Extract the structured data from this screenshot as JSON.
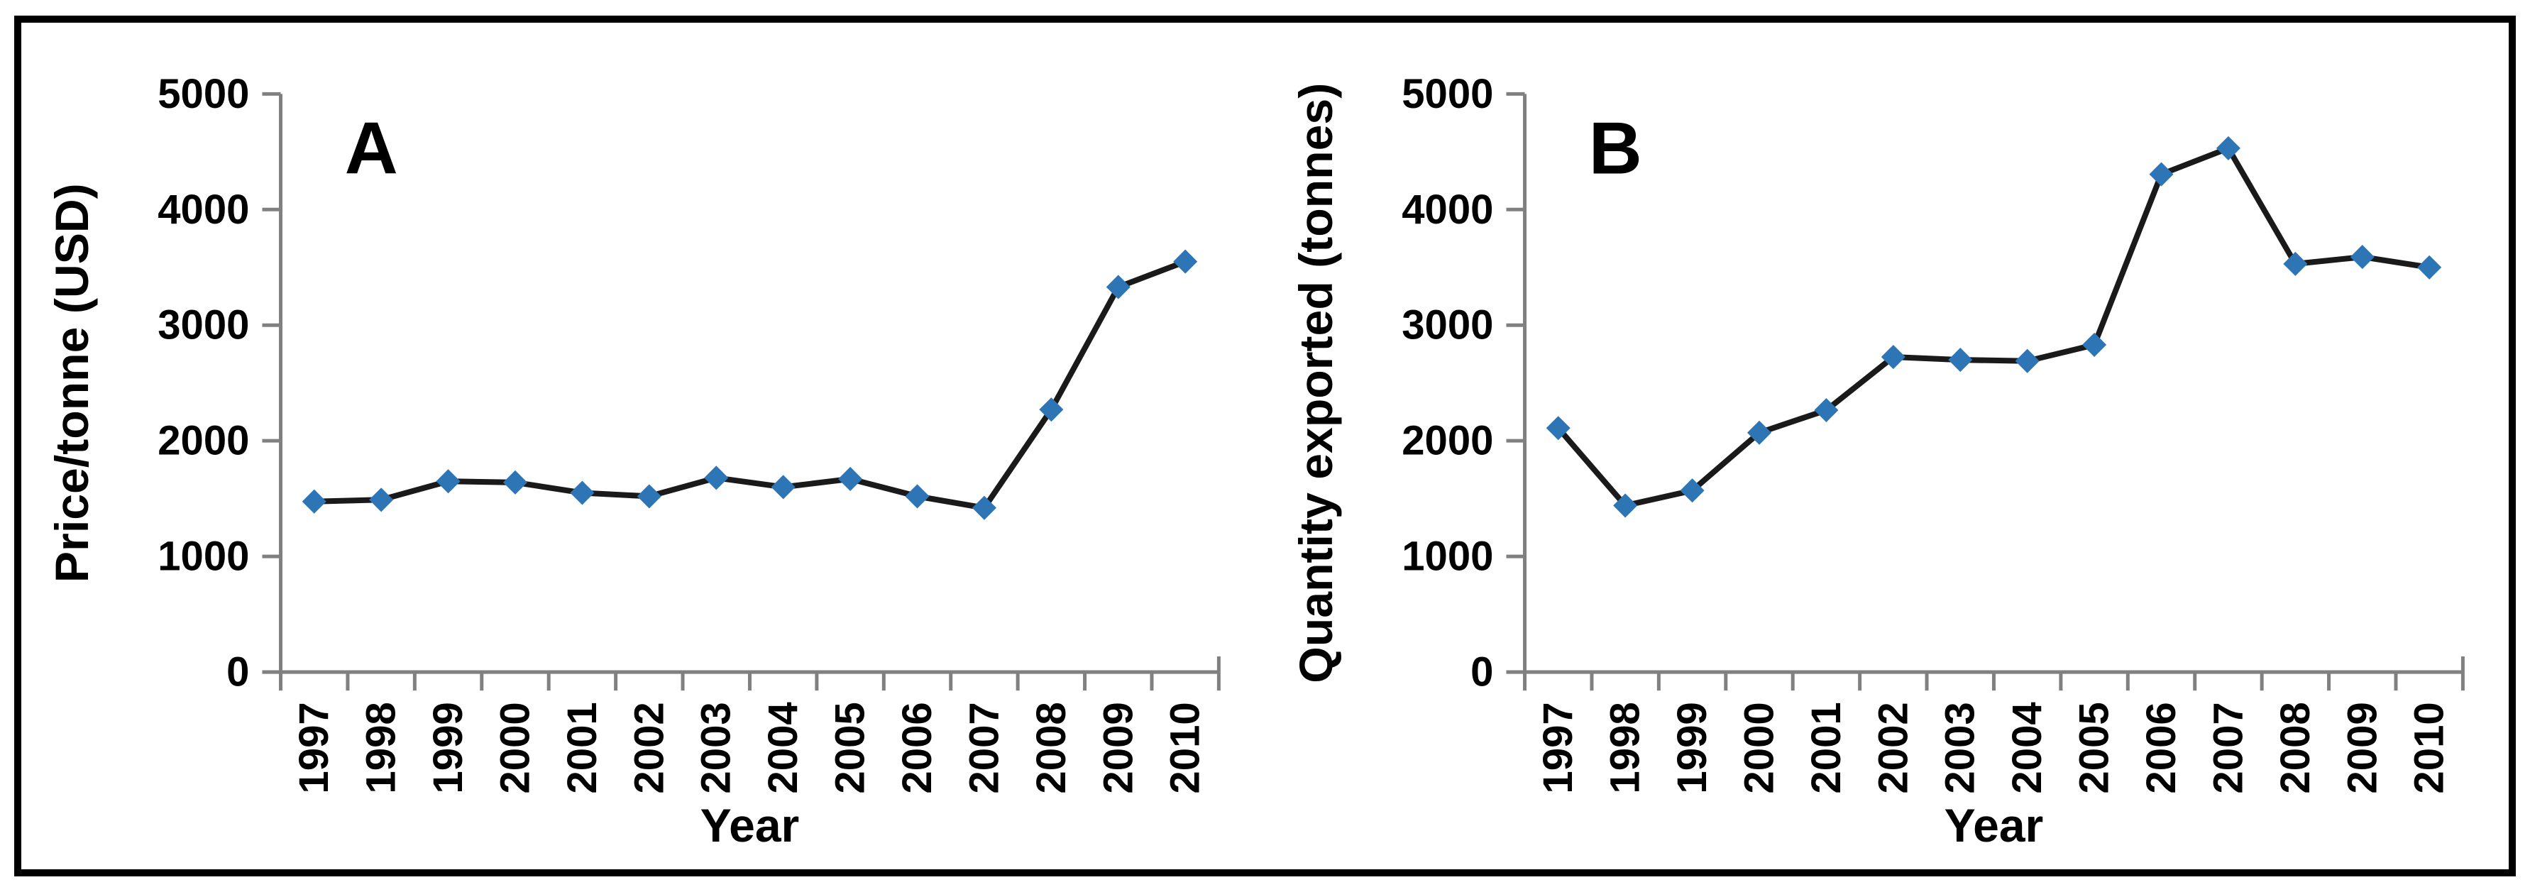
{
  "figure": {
    "background": "#ffffff",
    "frame_color": "#000000",
    "axis_color": "#808080",
    "line_color": "#1a1a1a",
    "marker_color": "#2e75b6",
    "text_color": "#000000"
  },
  "chart_data": [
    {
      "type": "line",
      "panel_label": "A",
      "xlabel": "Year",
      "ylabel": "Price/tonne (USD)",
      "categories": [
        "1997",
        "1998",
        "1999",
        "2000",
        "2001",
        "2002",
        "2003",
        "2004",
        "2005",
        "2006",
        "2007",
        "2008",
        "2009",
        "2010"
      ],
      "series": [
        {
          "name": "Price per tonne",
          "values": [
            1475,
            1490,
            1650,
            1640,
            1550,
            1520,
            1680,
            1600,
            1670,
            1520,
            1420,
            2270,
            3330,
            3550
          ]
        }
      ],
      "ylim": [
        0,
        5000
      ],
      "yticks": [
        0,
        1000,
        2000,
        3000,
        4000,
        5000
      ],
      "grid": false,
      "legend": "none",
      "marker": "diamond"
    },
    {
      "type": "line",
      "panel_label": "B",
      "xlabel": "Year",
      "ylabel": "Quantity exported (tonnes)",
      "categories": [
        "1997",
        "1998",
        "1999",
        "2000",
        "2001",
        "2002",
        "2003",
        "2004",
        "2005",
        "2006",
        "2007",
        "2008",
        "2009",
        "2010"
      ],
      "series": [
        {
          "name": "Quantity exported",
          "values": [
            2110,
            1440,
            1570,
            2070,
            2265,
            2725,
            2700,
            2690,
            2830,
            4305,
            4530,
            3530,
            3590,
            3500
          ]
        }
      ],
      "ylim": [
        0,
        5000
      ],
      "yticks": [
        0,
        1000,
        2000,
        3000,
        4000,
        5000
      ],
      "grid": false,
      "legend": "none",
      "marker": "diamond"
    }
  ]
}
